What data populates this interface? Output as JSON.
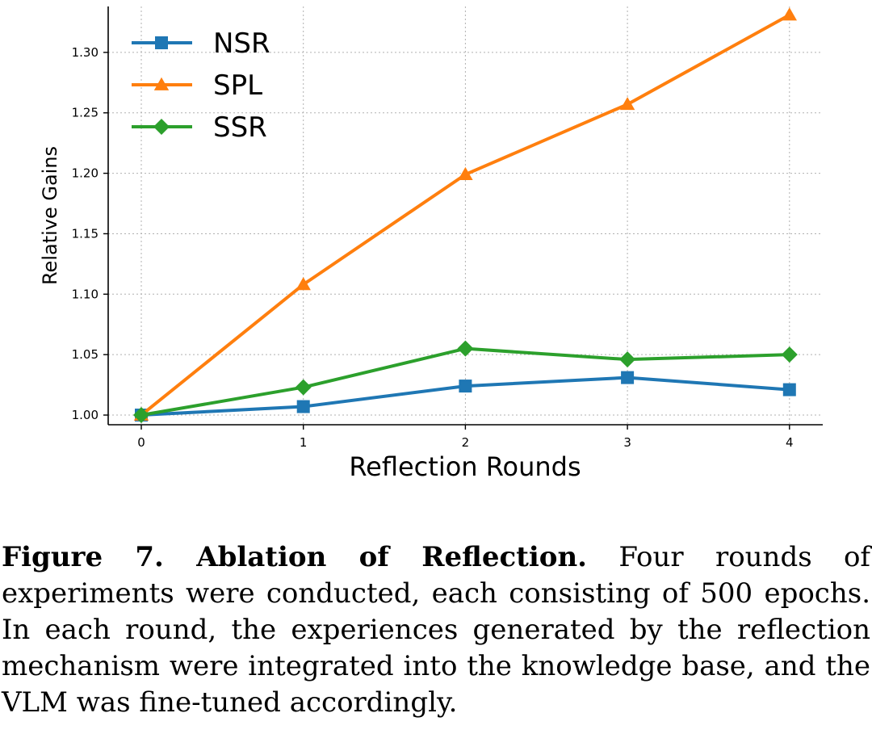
{
  "chart_data": {
    "type": "line",
    "xlabel": "Reflection Rounds",
    "ylabel": "Relative Gains",
    "x": [
      0,
      1,
      2,
      3,
      4
    ],
    "xticks": [
      "0",
      "1",
      "2",
      "3",
      "4"
    ],
    "yticks": [
      "1.00",
      "1.05",
      "1.10",
      "1.15",
      "1.20",
      "1.25",
      "1.30"
    ],
    "ylim": [
      0.992,
      1.338
    ],
    "grid": true,
    "legend_position": "top-left",
    "series": [
      {
        "name": "NSR",
        "values": [
          1.0,
          1.007,
          1.024,
          1.031,
          1.021
        ],
        "color": "#1f77b4",
        "marker": "square"
      },
      {
        "name": "SPL",
        "values": [
          1.0,
          1.108,
          1.199,
          1.257,
          1.331
        ],
        "color": "#ff7f0e",
        "marker": "triangle"
      },
      {
        "name": "SSR",
        "values": [
          1.0,
          1.023,
          1.055,
          1.046,
          1.05
        ],
        "color": "#2ca02c",
        "marker": "diamond"
      }
    ]
  },
  "caption": {
    "label": "Figure 7. Ablation of Reflection.",
    "text": "Four rounds of experiments were conducted, each consisting of 500 epochs. In each round, the experiences generated by the reflection mechanism were integrated into the knowledge base, and the VLM was fine-tuned accordingly."
  }
}
